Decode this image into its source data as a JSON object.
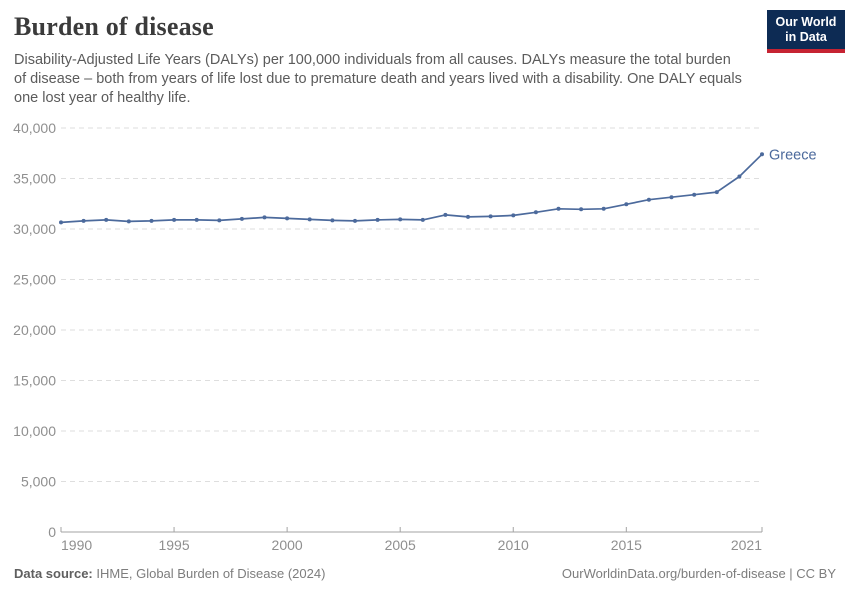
{
  "header": {
    "title": "Burden of disease",
    "subtitle": "Disability-Adjusted Life Years (DALYs) per 100,000 individuals from all causes. DALYs measure the total burden of disease – both from years of life lost due to premature death and years lived with a disability. One DALY equals one lost year of healthy life.",
    "logo": {
      "line1": "Our World",
      "line2": "in Data",
      "bg_color": "#0D2B54",
      "accent_color": "#C62332"
    }
  },
  "chart_data": {
    "type": "line",
    "title": "Burden of disease",
    "xlabel": "",
    "ylabel": "DALYs per 100,000 individuals",
    "xlim": [
      1990,
      2021
    ],
    "ylim": [
      0,
      40000
    ],
    "grid": "horizontal-dashed",
    "legend": "end-of-line-label",
    "x": [
      1990,
      1991,
      1992,
      1993,
      1994,
      1995,
      1996,
      1997,
      1998,
      1999,
      2000,
      2001,
      2002,
      2003,
      2004,
      2005,
      2006,
      2007,
      2008,
      2009,
      2010,
      2011,
      2012,
      2013,
      2014,
      2015,
      2016,
      2017,
      2018,
      2019,
      2020,
      2021
    ],
    "series": [
      {
        "name": "Greece",
        "color": "#4C6A9C",
        "values": [
          30650,
          30800,
          30900,
          30750,
          30800,
          30900,
          30900,
          30850,
          31000,
          31150,
          31050,
          30950,
          30850,
          30800,
          30900,
          30950,
          30900,
          31400,
          31200,
          31250,
          31350,
          31650,
          32000,
          31950,
          32000,
          32450,
          32900,
          33150,
          33400,
          33650,
          35200,
          37400
        ]
      }
    ],
    "xticks": [
      {
        "v": 1990,
        "label": "1990"
      },
      {
        "v": 1995,
        "label": "1995"
      },
      {
        "v": 2000,
        "label": "2000"
      },
      {
        "v": 2005,
        "label": "2005"
      },
      {
        "v": 2010,
        "label": "2010"
      },
      {
        "v": 2015,
        "label": "2015"
      },
      {
        "v": 2021,
        "label": "2021"
      }
    ],
    "yticks": [
      {
        "v": 0,
        "label": "0"
      },
      {
        "v": 5000,
        "label": "5,000"
      },
      {
        "v": 10000,
        "label": "10,000"
      },
      {
        "v": 15000,
        "label": "15,000"
      },
      {
        "v": 20000,
        "label": "20,000"
      },
      {
        "v": 25000,
        "label": "25,000"
      },
      {
        "v": 30000,
        "label": "30,000"
      },
      {
        "v": 35000,
        "label": "35,000"
      },
      {
        "v": 40000,
        "label": "40,000"
      }
    ],
    "colors": {
      "gridline": "#dedede",
      "axis": "#a3a3a3",
      "tick_label": "#8f8f8f"
    }
  },
  "footer": {
    "source_label": "Data source:",
    "source_value": "IHME, Global Burden of Disease (2024)",
    "link_text": "OurWorldinData.org/burden-of-disease | CC BY"
  }
}
